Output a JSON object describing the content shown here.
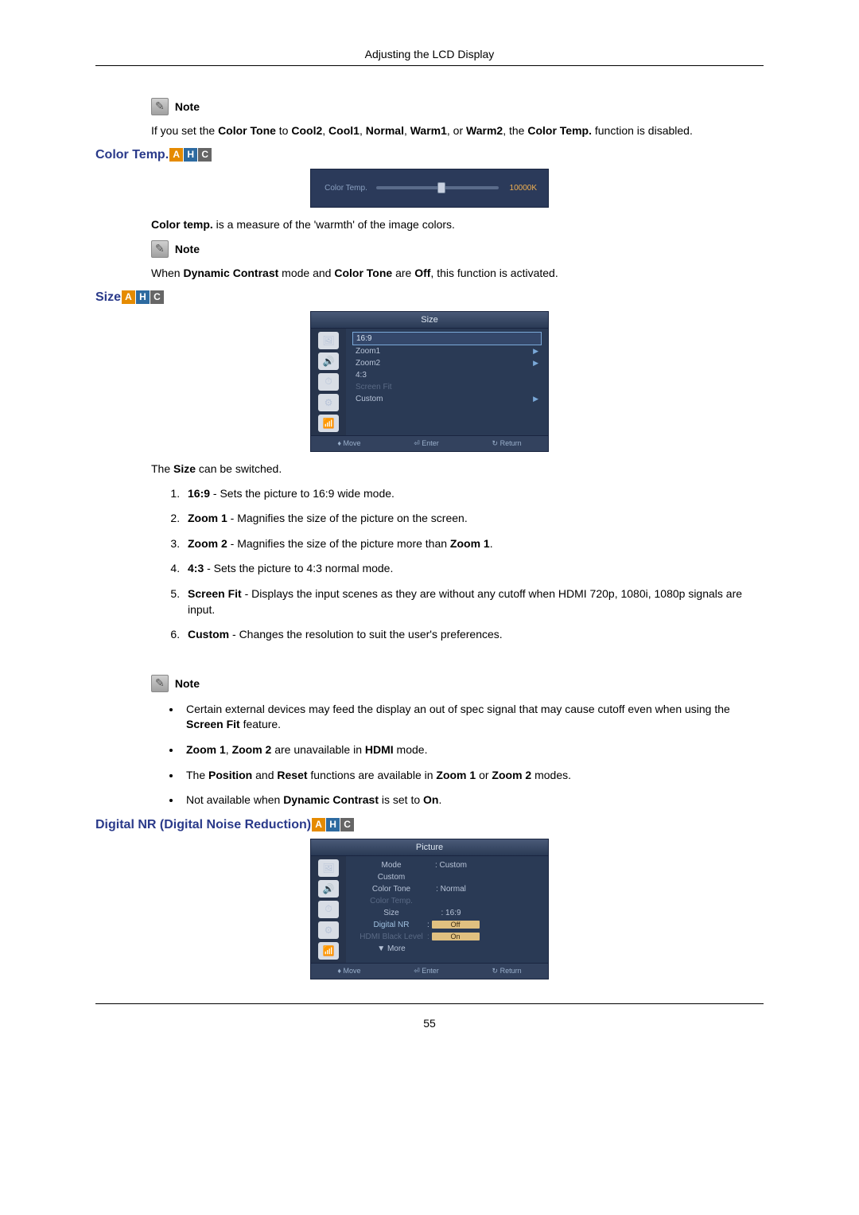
{
  "header": {
    "title": "Adjusting the LCD Display"
  },
  "note": {
    "label": "Note"
  },
  "colorTone": {
    "text_a": "If you set the ",
    "bold_a": "Color Tone",
    "text_b": " to ",
    "bold_b": "Cool2",
    "sep1": ", ",
    "bold_c": "Cool1",
    "sep2": ", ",
    "bold_d": "Normal",
    "sep3": ", ",
    "bold_e": "Warm1",
    "sep4": ", or ",
    "bold_f": "Warm2",
    "text_c": ", the ",
    "bold_g": "Color Temp.",
    "text_d": " function is disabled."
  },
  "section1": {
    "title": "Color Temp."
  },
  "ctOSD": {
    "label": "Color Temp.",
    "value": "10000K"
  },
  "ctPara": {
    "bold_a": "Color temp.",
    "text_a": " is a measure of the 'warmth' of the image colors."
  },
  "ctNote": {
    "text_a": "When ",
    "bold_a": "Dynamic Contrast",
    "text_b": " mode and ",
    "bold_b": "Color Tone",
    "text_c": " are ",
    "bold_c": "Off",
    "text_d": ", this function is activated."
  },
  "section2": {
    "title": "Size"
  },
  "sizeOSD": {
    "title": "Size",
    "items": [
      "16:9",
      "Zoom1",
      "Zoom2",
      "4:3",
      "Screen Fit",
      "Custom"
    ],
    "footer": {
      "move": "Move",
      "enter": "Enter",
      "ret": "Return"
    }
  },
  "sizePara": {
    "text_a": "The ",
    "bold_a": "Size",
    "text_b": " can be switched."
  },
  "sizeList": {
    "i1": {
      "b": "16:9",
      "t": " - Sets the picture to 16:9 wide mode."
    },
    "i2": {
      "b": "Zoom 1",
      "t": " - Magnifies the size of the picture on the screen."
    },
    "i3": {
      "b": "Zoom 2",
      "t": " - Magnifies the size of the picture more than ",
      "b2": "Zoom 1",
      "t2": "."
    },
    "i4": {
      "b": "4:3",
      "t": " - Sets the picture to 4:3 normal mode."
    },
    "i5": {
      "b": "Screen Fit",
      "t": " - Displays the input scenes as they are without any cutoff when HDMI 720p, 1080i, 1080p signals are input."
    },
    "i6": {
      "b": "Custom",
      "t": " - Changes the resolution to suit the user's preferences."
    }
  },
  "sizeNotes": {
    "b1": {
      "t1": "Certain external devices may feed the display an out of spec signal that may cause cutoff even when using the ",
      "b1": "Screen Fit",
      "t2": " feature."
    },
    "b2": {
      "b1": "Zoom 1",
      "t1": ", ",
      "b2": "Zoom 2",
      "t2": " are unavailable in ",
      "b3": "HDMI",
      "t3": " mode."
    },
    "b3": {
      "t1": "The ",
      "b1": "Position",
      "t2": " and ",
      "b2": "Reset",
      "t3": " functions are available in  ",
      "b3": "Zoom 1",
      "t4": " or  ",
      "b4": "Zoom 2",
      "t5": " modes."
    },
    "b4": {
      "t1": "Not available when ",
      "b1": "Dynamic Contrast",
      "t2": " is set to ",
      "b2": "On",
      "t3": "."
    }
  },
  "section3": {
    "title": "Digital NR (Digital Noise Reduction)"
  },
  "nrOSD": {
    "title": "Picture",
    "rows": {
      "mode": {
        "k": "Mode",
        "v": ": Custom"
      },
      "custom": {
        "k": "Custom",
        "v": ""
      },
      "colortone": {
        "k": "Color Tone",
        "v": ": Normal"
      },
      "colortemp": {
        "k": "Color Temp.",
        "v": ""
      },
      "size": {
        "k": "Size",
        "v": ": 16:9"
      },
      "digitalnr": {
        "k": "Digital NR",
        "v": "Off"
      },
      "hdmibl": {
        "k": "HDMI Black Level",
        "v": "On"
      },
      "more": {
        "k": "▼ More",
        "v": ""
      }
    },
    "footer": {
      "move": "Move",
      "enter": "Enter",
      "ret": "Return"
    }
  },
  "badges": {
    "a": "A",
    "h": "H",
    "c": "C"
  },
  "pageNumber": "55",
  "icons": {
    "side1": "🖼",
    "side2": "🔊",
    "side3": "⏱",
    "side4": "⚙",
    "side5": "📶",
    "footerArrow": "♦",
    "footerEnter": "⏎",
    "footerReturn": "↻"
  }
}
